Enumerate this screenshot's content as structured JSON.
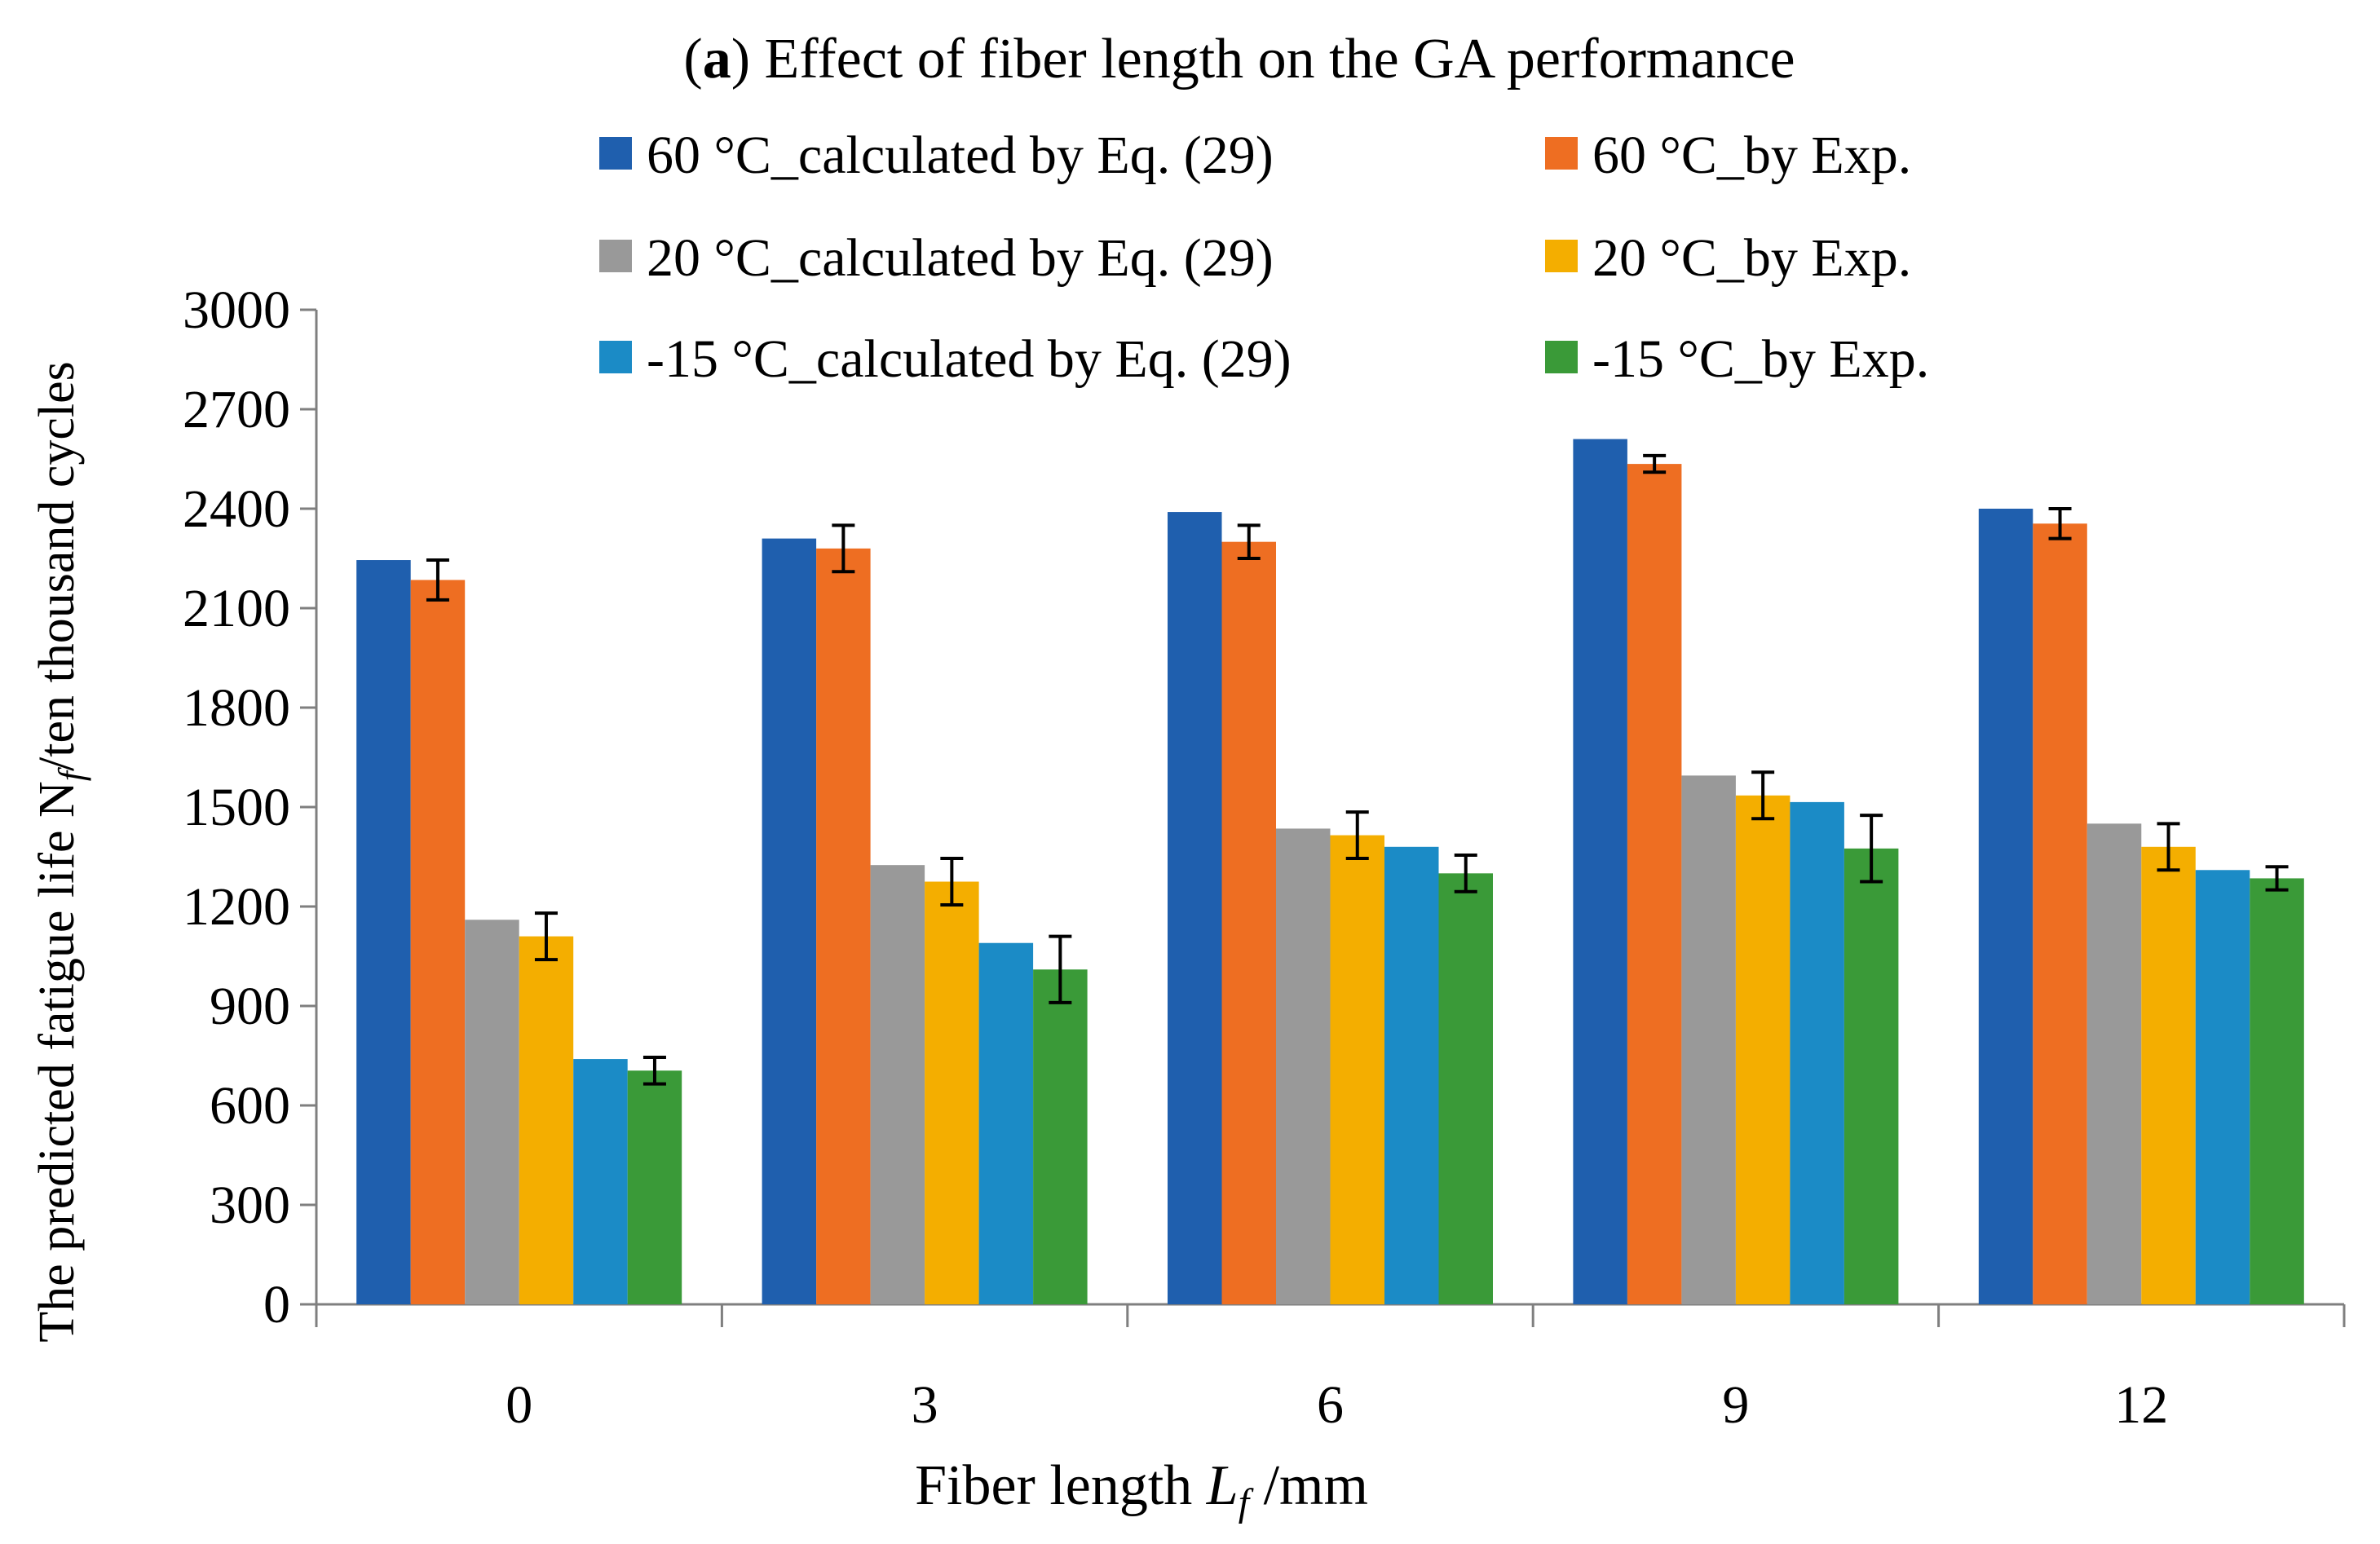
{
  "chart_data": {
    "type": "bar",
    "title_prefix": "(",
    "title_bold": "a",
    "title_rest": ") Effect of fiber length on the GA performance",
    "xlabel_main": "Fiber length ",
    "xlabel_var": "L",
    "xlabel_sub": "f",
    "xlabel_unit": " /mm",
    "ylabel_main": "The predicted fatigue life N",
    "ylabel_sub": "f",
    "ylabel_unit": "/ten thousand cycles",
    "categories": [
      "0",
      "3",
      "6",
      "9",
      "12"
    ],
    "ylim": [
      0,
      3000
    ],
    "yticks": [
      "0",
      "300",
      "600",
      "900",
      "1200",
      "1500",
      "1800",
      "2100",
      "2400",
      "2700",
      "3000"
    ],
    "grid": false,
    "legend_position": "top",
    "series": [
      {
        "name": "60 °C_calculated by Eq. (29)",
        "color": "#1F5FAE",
        "values": [
          2245,
          2310,
          2390,
          2610,
          2400
        ]
      },
      {
        "name": "60 °C_by Exp.",
        "color": "#EE6E22",
        "values": [
          2185,
          2280,
          2300,
          2535,
          2355
        ],
        "errors": [
          60,
          70,
          50,
          25,
          45
        ]
      },
      {
        "name": "20 °C_calculated by Eq. (29)",
        "color": "#999999",
        "values": [
          1160,
          1325,
          1435,
          1595,
          1450
        ]
      },
      {
        "name": "20 °C_by Exp.",
        "color": "#F4AE00",
        "values": [
          1110,
          1275,
          1415,
          1535,
          1380
        ],
        "errors": [
          70,
          70,
          70,
          70,
          70
        ]
      },
      {
        "name": "-15 °C_calculated by Eq. (29)",
        "color": "#1B8BC6",
        "values": [
          740,
          1090,
          1380,
          1515,
          1310
        ]
      },
      {
        "name": "-15 °C_by Exp.",
        "color": "#3A9A38",
        "values": [
          705,
          1010,
          1300,
          1375,
          1285
        ],
        "errors": [
          40,
          100,
          55,
          100,
          35
        ]
      }
    ]
  }
}
